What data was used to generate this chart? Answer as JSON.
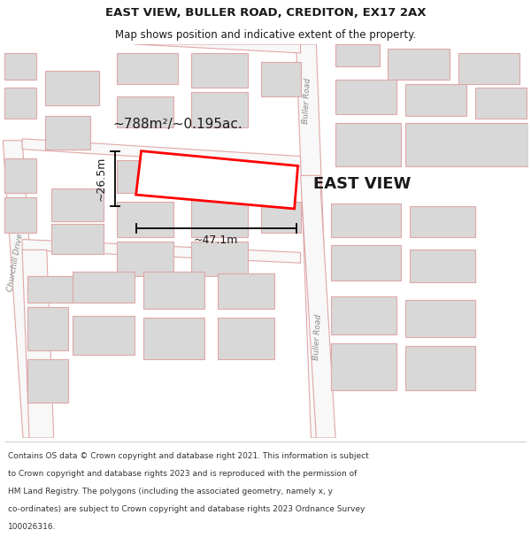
{
  "title": "EAST VIEW, BULLER ROAD, CREDITON, EX17 2AX",
  "subtitle": "Map shows position and indicative extent of the property.",
  "footer_lines": [
    "Contains OS data © Crown copyright and database right 2021. This information is subject",
    "to Crown copyright and database rights 2023 and is reproduced with the permission of",
    "HM Land Registry. The polygons (including the associated geometry, namely x, y",
    "co-ordinates) are subject to Crown copyright and database rights 2023 Ordnance Survey",
    "100026316."
  ],
  "map_bg": "#f7f7f7",
  "bld_fill": "#d8d8d8",
  "bld_edge": "#c0b8b8",
  "road_line": "#e0a8a8",
  "road_bg": "#f0f0f0",
  "highlight": "#ff0000",
  "text_dark": "#1a1a1a",
  "text_road": "#888888",
  "area_label": "~788m²/~0.195ac.",
  "prop_label": "EAST VIEW",
  "dim_w": "~47.1m",
  "dim_h": "~26.5m"
}
